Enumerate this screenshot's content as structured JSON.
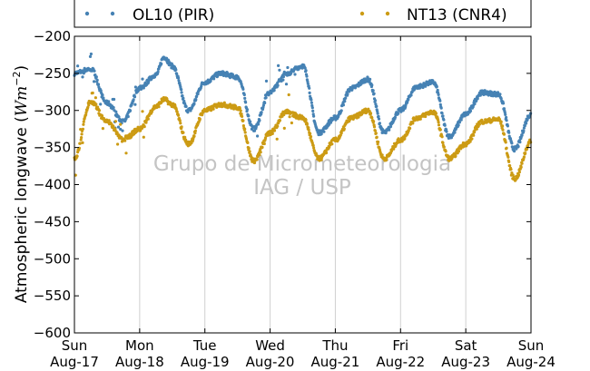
{
  "chart_data": {
    "type": "scatter",
    "ylabel_main": "Atmospheric longwave (",
    "ylabel_unit": "Wm",
    "ylabel_exp": "−2",
    "ylabel_close": ")",
    "ylim": [
      -600,
      -200
    ],
    "y_ticks": [
      -200,
      -250,
      -300,
      -350,
      -400,
      -450,
      -500,
      -550,
      -600
    ],
    "y_tick_labels": [
      "−200",
      "−250",
      "−300",
      "−350",
      "−400",
      "−450",
      "−500",
      "−550",
      "−600"
    ],
    "x_ticks": [
      {
        "day": "Sun",
        "date": "Aug-17"
      },
      {
        "day": "Mon",
        "date": "Aug-18"
      },
      {
        "day": "Tue",
        "date": "Aug-19"
      },
      {
        "day": "Wed",
        "date": "Aug-20"
      },
      {
        "day": "Thu",
        "date": "Aug-21"
      },
      {
        "day": "Fri",
        "date": "Aug-22"
      },
      {
        "day": "Sat",
        "date": "Aug-23"
      },
      {
        "day": "Sun",
        "date": "Aug-24"
      }
    ],
    "grid": "vertical",
    "legend_position": "top",
    "watermark": [
      "Grupo de Micrometeorologia",
      "IAG / USP"
    ],
    "series": [
      {
        "name": "OL10 (PIR)",
        "color": "#4682b4",
        "x": [
          "Aug-17 00:00",
          "Aug-17 06:00",
          "Aug-17 12:00",
          "Aug-17 18:00",
          "Aug-18 00:00",
          "Aug-18 06:00",
          "Aug-18 09:00",
          "Aug-18 12:00",
          "Aug-18 18:00",
          "Aug-19 00:00",
          "Aug-19 06:00",
          "Aug-19 12:00",
          "Aug-19 18:00",
          "Aug-20 00:00",
          "Aug-20 06:00",
          "Aug-20 12:00",
          "Aug-20 18:00",
          "Aug-21 00:00",
          "Aug-21 06:00",
          "Aug-21 12:00",
          "Aug-21 18:00",
          "Aug-22 00:00",
          "Aug-22 06:00",
          "Aug-22 12:00",
          "Aug-22 18:00",
          "Aug-23 00:00",
          "Aug-23 06:00",
          "Aug-23 12:00",
          "Aug-23 18:00",
          "Aug-24 00:00"
        ],
        "values": [
          -250,
          -244,
          -290,
          -315,
          -270,
          -252,
          -228,
          -240,
          -300,
          -262,
          -250,
          -255,
          -325,
          -275,
          -250,
          -240,
          -330,
          -310,
          -270,
          -258,
          -330,
          -300,
          -268,
          -262,
          -335,
          -305,
          -276,
          -278,
          -352,
          -305
        ]
      },
      {
        "name": "NT13 (CNR4)",
        "color": "#cc9b14",
        "x": [
          "Aug-17 00:00",
          "Aug-17 06:00",
          "Aug-17 12:00",
          "Aug-17 18:00",
          "Aug-18 00:00",
          "Aug-18 06:00",
          "Aug-18 09:00",
          "Aug-18 12:00",
          "Aug-18 18:00",
          "Aug-19 00:00",
          "Aug-19 06:00",
          "Aug-19 12:00",
          "Aug-19 18:00",
          "Aug-20 00:00",
          "Aug-20 06:00",
          "Aug-20 12:00",
          "Aug-20 18:00",
          "Aug-21 00:00",
          "Aug-21 06:00",
          "Aug-21 12:00",
          "Aug-21 18:00",
          "Aug-22 00:00",
          "Aug-22 06:00",
          "Aug-22 12:00",
          "Aug-22 18:00",
          "Aug-23 00:00",
          "Aug-23 06:00",
          "Aug-23 12:00",
          "Aug-23 18:00",
          "Aug-24 00:00"
        ],
        "values": [
          -365,
          -288,
          -315,
          -340,
          -325,
          -295,
          -285,
          -292,
          -345,
          -300,
          -292,
          -296,
          -368,
          -330,
          -302,
          -310,
          -365,
          -340,
          -310,
          -300,
          -365,
          -340,
          -310,
          -302,
          -365,
          -345,
          -315,
          -312,
          -392,
          -342
        ]
      }
    ]
  }
}
